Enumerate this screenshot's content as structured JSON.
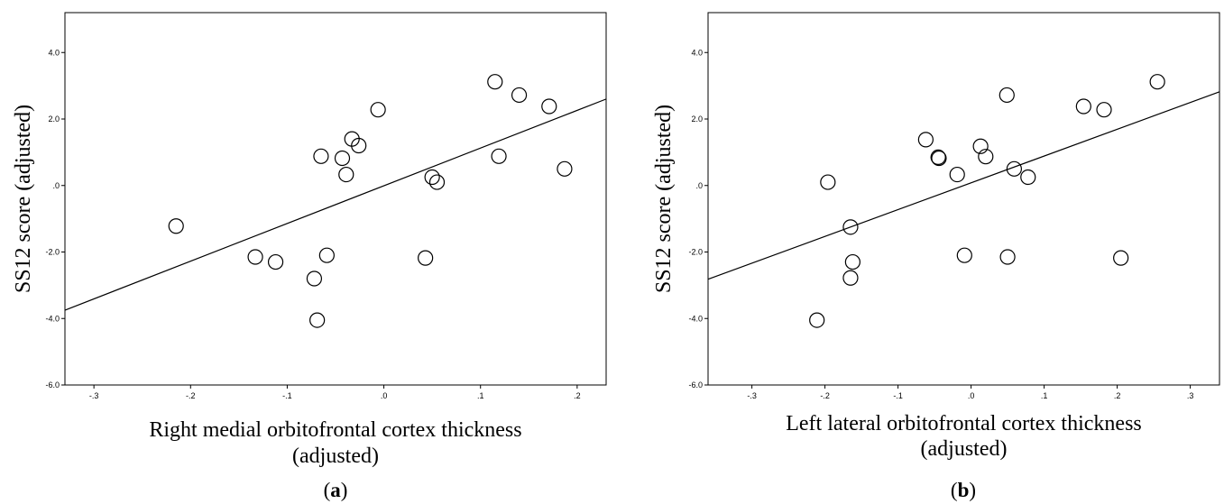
{
  "chart_data": [
    {
      "type": "scatter",
      "panel": "a",
      "caption_pre": "(",
      "caption_letter": "a",
      "caption_post": ")",
      "xlabel_lines": [
        "Right medial orbitofrontal cortex thickness",
        "(adjusted)"
      ],
      "ylabel": "SS12 score (adjusted)",
      "xlim": [
        -0.33,
        0.23
      ],
      "ylim": [
        -6.0,
        5.2
      ],
      "xticks": [
        -0.3,
        -0.2,
        -0.1,
        0.0,
        0.1,
        0.2
      ],
      "xtick_labels": [
        "-.3",
        "-.2",
        "-.1",
        ".0",
        ".1",
        ".2"
      ],
      "yticks": [
        -6,
        -4,
        -2,
        0,
        2,
        4
      ],
      "ytick_labels": [
        "-6.0",
        "-4.0",
        "-2.0",
        ".0",
        "2.0",
        "4.0"
      ],
      "grid": false,
      "fit_line": {
        "x": [
          -0.33,
          0.23
        ],
        "y": [
          -3.75,
          2.6
        ]
      },
      "points": [
        {
          "x": -0.215,
          "y": -1.22
        },
        {
          "x": -0.133,
          "y": -2.15
        },
        {
          "x": -0.112,
          "y": -2.3
        },
        {
          "x": -0.072,
          "y": -2.8
        },
        {
          "x": -0.069,
          "y": -4.05
        },
        {
          "x": -0.059,
          "y": -2.1
        },
        {
          "x": -0.065,
          "y": 0.88
        },
        {
          "x": -0.043,
          "y": 0.82
        },
        {
          "x": -0.039,
          "y": 0.33
        },
        {
          "x": -0.033,
          "y": 1.4
        },
        {
          "x": -0.026,
          "y": 1.2
        },
        {
          "x": -0.006,
          "y": 2.28
        },
        {
          "x": 0.043,
          "y": -2.18
        },
        {
          "x": 0.05,
          "y": 0.25
        },
        {
          "x": 0.055,
          "y": 0.1
        },
        {
          "x": 0.115,
          "y": 3.12
        },
        {
          "x": 0.119,
          "y": 0.88
        },
        {
          "x": 0.14,
          "y": 2.72
        },
        {
          "x": 0.171,
          "y": 2.38
        },
        {
          "x": 0.187,
          "y": 0.5
        }
      ]
    },
    {
      "type": "scatter",
      "panel": "b",
      "caption_pre": "(",
      "caption_letter": "b",
      "caption_post": ")",
      "xlabel_lines": [
        "Left lateral orbitofrontal cortex thickness",
        "(adjusted)"
      ],
      "ylabel": "SS12 score (adjusted)",
      "xlim": [
        -0.36,
        0.34
      ],
      "ylim": [
        -6.0,
        5.2
      ],
      "xticks": [
        -0.3,
        -0.2,
        -0.1,
        0.0,
        0.1,
        0.2,
        0.3
      ],
      "xtick_labels": [
        "-.3",
        "-.2",
        "-.1",
        ".0",
        ".1",
        ".2",
        ".3"
      ],
      "yticks": [
        -6,
        -4,
        -2,
        0,
        2,
        4
      ],
      "ytick_labels": [
        "-6.0",
        "-4.0",
        "-2.0",
        ".0",
        "2.0",
        "4.0"
      ],
      "grid": false,
      "fit_line": {
        "x": [
          -0.36,
          0.34
        ],
        "y": [
          -2.82,
          2.82
        ]
      },
      "points": [
        {
          "x": -0.211,
          "y": -4.05
        },
        {
          "x": -0.196,
          "y": 0.1
        },
        {
          "x": -0.165,
          "y": -1.25
        },
        {
          "x": -0.162,
          "y": -2.3
        },
        {
          "x": -0.165,
          "y": -2.78
        },
        {
          "x": -0.062,
          "y": 1.38
        },
        {
          "x": -0.045,
          "y": 0.85
        },
        {
          "x": -0.044,
          "y": 0.82
        },
        {
          "x": -0.019,
          "y": 0.33
        },
        {
          "x": -0.009,
          "y": -2.1
        },
        {
          "x": 0.013,
          "y": 1.18
        },
        {
          "x": 0.02,
          "y": 0.87
        },
        {
          "x": 0.049,
          "y": 2.72
        },
        {
          "x": 0.05,
          "y": -2.15
        },
        {
          "x": 0.059,
          "y": 0.5
        },
        {
          "x": 0.078,
          "y": 0.25
        },
        {
          "x": 0.154,
          "y": 2.38
        },
        {
          "x": 0.182,
          "y": 2.28
        },
        {
          "x": 0.205,
          "y": -2.18
        },
        {
          "x": 0.255,
          "y": 3.12
        }
      ]
    }
  ]
}
